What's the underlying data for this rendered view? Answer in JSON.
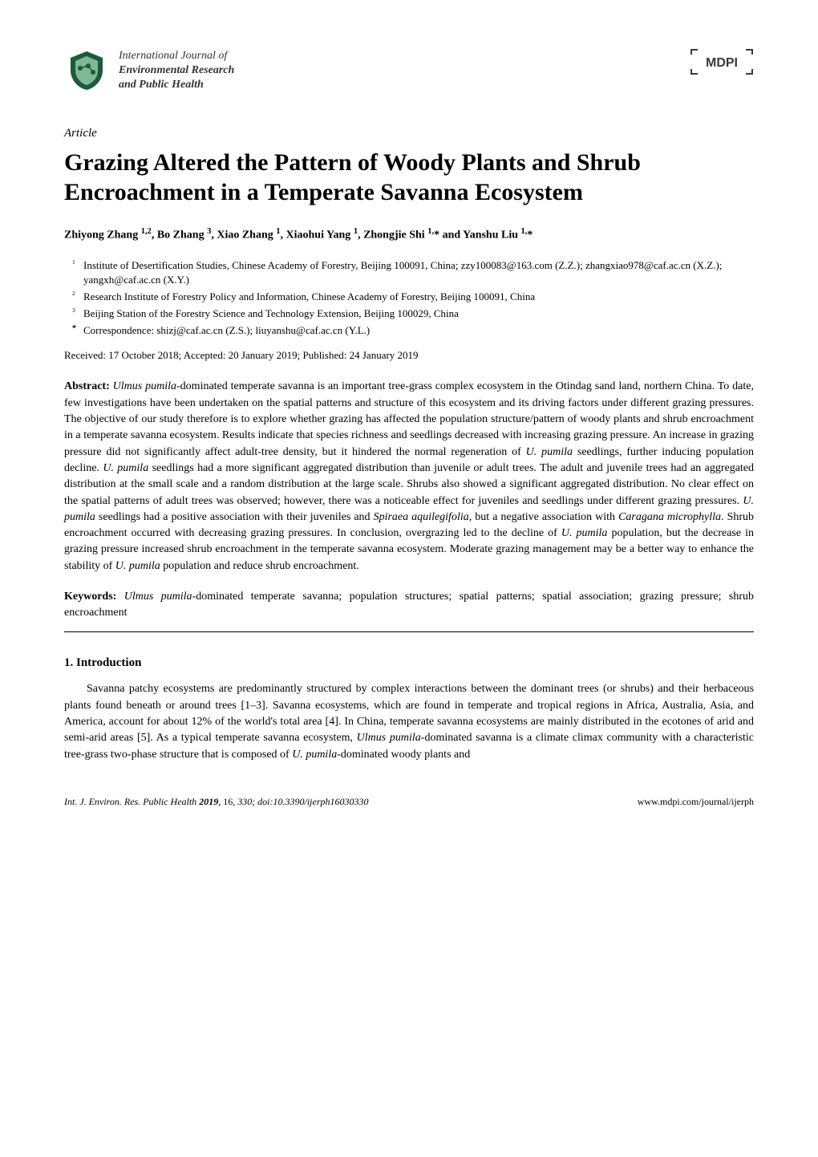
{
  "journal": {
    "line1": "International Journal of",
    "line2": "Environmental Research",
    "line3": "and Public Health",
    "icon_colors": {
      "outer": "#1a5c3a",
      "inner": "#7fb896"
    }
  },
  "publisher_logo_text": "MDPI",
  "article_label": "Article",
  "title": "Grazing Altered the Pattern of Woody Plants and Shrub Encroachment in a Temperate Savanna Ecosystem",
  "authors_html": "Zhiyong Zhang <sup>1,2</sup>, Bo Zhang <sup>3</sup>, Xiao Zhang <sup>1</sup>, Xiaohui Yang <sup>1</sup>, Zhongjie Shi <sup>1,</sup>* and Yanshu Liu <sup>1,</sup>*",
  "affiliations": [
    {
      "marker": "1",
      "text": "Institute of Desertification Studies, Chinese Academy of Forestry, Beijing 100091, China; zzy100083@163.com (Z.Z.); zhangxiao978@caf.ac.cn (X.Z.); yangxh@caf.ac.cn (X.Y.)"
    },
    {
      "marker": "2",
      "text": "Research Institute of Forestry Policy and Information, Chinese Academy of Forestry, Beijing 100091, China"
    },
    {
      "marker": "3",
      "text": "Beijing Station of the Forestry Science and Technology Extension, Beijing 100029, China"
    },
    {
      "marker": "*",
      "text": "Correspondence: shizj@caf.ac.cn (Z.S.); liuyanshu@caf.ac.cn (Y.L.)"
    }
  ],
  "dates": "Received: 17 October 2018; Accepted: 20 January 2019; Published: 24 January 2019",
  "abstract_label": "Abstract:",
  "abstract_html": "<span class='ital'>Ulmus pumila</span>-dominated temperate savanna is an important tree-grass complex ecosystem in the Otindag sand land, northern China. To date, few investigations have been undertaken on the spatial patterns and structure of this ecosystem and its driving factors under different grazing pressures. The objective of our study therefore is to explore whether grazing has affected the population structure/pattern of woody plants and shrub encroachment in a temperate savanna ecosystem. Results indicate that species richness and seedlings decreased with increasing grazing pressure. An increase in grazing pressure did not significantly affect adult-tree density, but it hindered the normal regeneration of <span class='ital'>U. pumila</span> seedlings, further inducing population decline. <span class='ital'>U. pumila</span> seedlings had a more significant aggregated distribution than juvenile or adult trees. The adult and juvenile trees had an aggregated distribution at the small scale and a random distribution at the large scale. Shrubs also showed a significant aggregated distribution. No clear effect on the spatial patterns of adult trees was observed; however, there was a noticeable effect for juveniles and seedlings under different grazing pressures. <span class='ital'>U. pumila</span> seedlings had a positive association with their juveniles and <span class='ital'>Spiraea aquilegifolia</span>, but a negative association with <span class='ital'>Caragana microphylla</span>. Shrub encroachment occurred with decreasing grazing pressures. In conclusion, overgrazing led to the decline of <span class='ital'>U. pumila</span> population, but the decrease in grazing pressure increased shrub encroachment in the temperate savanna ecosystem. Moderate grazing management may be a better way to enhance the stability of <span class='ital'>U. pumila</span> population and reduce shrub encroachment.",
  "keywords_label": "Keywords:",
  "keywords_html": "<span class='ital'>Ulmus pumila</span>-dominated temperate savanna; population structures; spatial patterns; spatial association; grazing pressure; shrub encroachment",
  "section1_heading": "1. Introduction",
  "section1_body_html": "Savanna patchy ecosystems are predominantly structured by complex interactions between the dominant trees (or shrubs) and their herbaceous plants found beneath or around trees [1–3]. Savanna ecosystems, which are found in temperate and tropical regions in Africa, Australia, Asia, and America, account for about 12% of the world's total area [4]. In China, temperate savanna ecosystems are mainly distributed in the ecotones of arid and semi-arid areas [5]. As a typical temperate savanna ecosystem, <span class='ital'>Ulmus pumila</span>-dominated savanna is a climate climax community with a characteristic tree-grass two-phase structure that is composed of <span class='ital'>U. pumila</span>-dominated woody plants and",
  "footer": {
    "left_html": "<span class='ital'>Int. J. Environ. Res. Public Health</span> <b>2019</b>, <span class='ital'>16</span>, 330; doi:10.3390/ijerph16030330",
    "right": "www.mdpi.com/journal/ijerph"
  },
  "colors": {
    "text": "#000000",
    "background": "#ffffff",
    "rule": "#000000",
    "mdpi_border": "#3a3a3a"
  }
}
